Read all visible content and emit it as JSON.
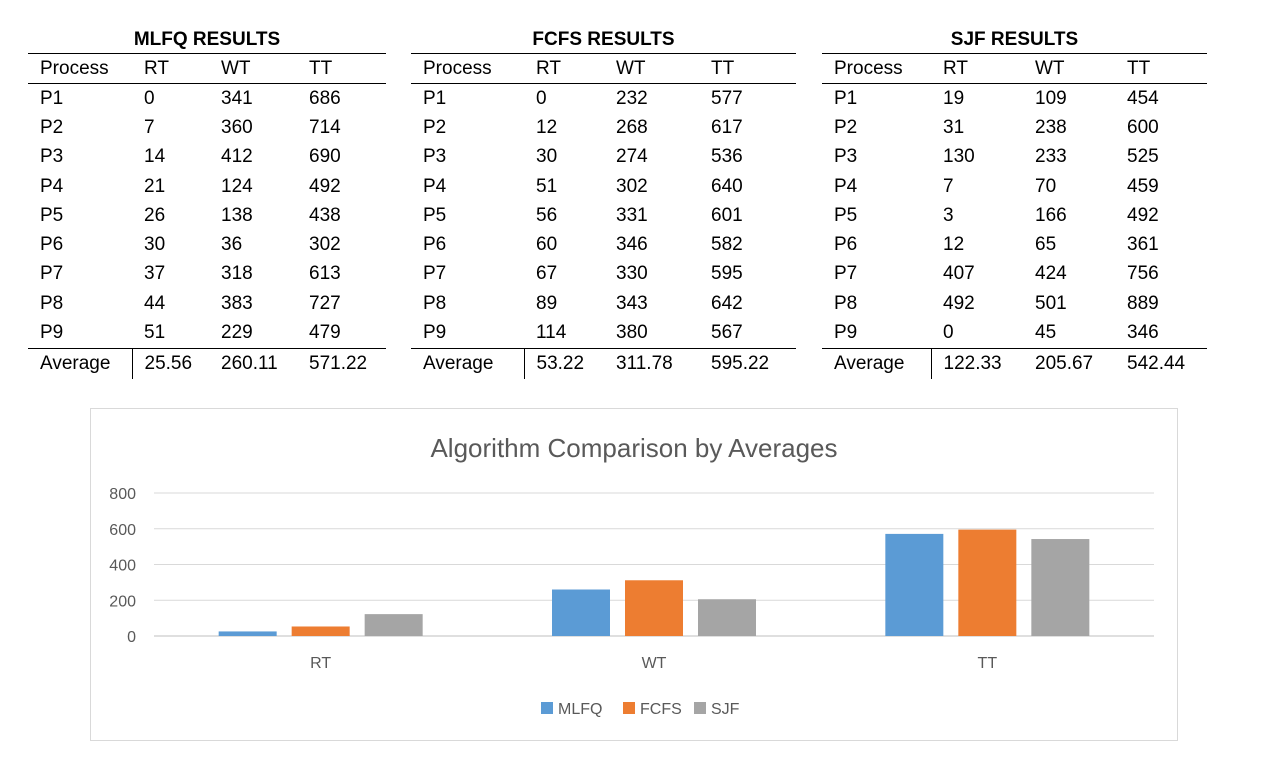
{
  "tables": [
    {
      "title": "MLFQ RESULTS",
      "headers": [
        "Process",
        "RT",
        "WT",
        "TT"
      ],
      "rows": [
        [
          "P1",
          "0",
          "341",
          "686"
        ],
        [
          "P2",
          "7",
          "360",
          "714"
        ],
        [
          "P3",
          "14",
          "412",
          "690"
        ],
        [
          "P4",
          "21",
          "124",
          "492"
        ],
        [
          "P5",
          "26",
          "138",
          "438"
        ],
        [
          "P6",
          "30",
          "36",
          "302"
        ],
        [
          "P7",
          "37",
          "318",
          "613"
        ],
        [
          "P8",
          "44",
          "383",
          "727"
        ],
        [
          "P9",
          "51",
          "229",
          "479"
        ]
      ],
      "average": [
        "Average",
        "25.56",
        "260.11",
        "571.22"
      ]
    },
    {
      "title": "FCFS RESULTS",
      "headers": [
        "Process",
        "RT",
        "WT",
        "TT"
      ],
      "rows": [
        [
          "P1",
          "0",
          "232",
          "577"
        ],
        [
          "P2",
          "12",
          "268",
          "617"
        ],
        [
          "P3",
          "30",
          "274",
          "536"
        ],
        [
          "P4",
          "51",
          "302",
          "640"
        ],
        [
          "P5",
          "56",
          "331",
          "601"
        ],
        [
          "P6",
          "60",
          "346",
          "582"
        ],
        [
          "P7",
          "67",
          "330",
          "595"
        ],
        [
          "P8",
          "89",
          "343",
          "642"
        ],
        [
          "P9",
          "114",
          "380",
          "567"
        ]
      ],
      "average": [
        "Average",
        "53.22",
        "311.78",
        "595.22"
      ]
    },
    {
      "title": "SJF RESULTS",
      "headers": [
        "Process",
        "RT",
        "WT",
        "TT"
      ],
      "rows": [
        [
          "P1",
          "19",
          "109",
          "454"
        ],
        [
          "P2",
          "31",
          "238",
          "600"
        ],
        [
          "P3",
          "130",
          "233",
          "525"
        ],
        [
          "P4",
          "7",
          "70",
          "459"
        ],
        [
          "P5",
          "3",
          "166",
          "492"
        ],
        [
          "P6",
          "12",
          "65",
          "361"
        ],
        [
          "P7",
          "407",
          "424",
          "756"
        ],
        [
          "P8",
          "492",
          "501",
          "889"
        ],
        [
          "P9",
          "0",
          "45",
          "346"
        ]
      ],
      "average": [
        "Average",
        "122.33",
        "205.67",
        "542.44"
      ]
    }
  ],
  "chart_data": {
    "type": "bar",
    "title": "Algorithm Comparison by Averages",
    "categories": [
      "RT",
      "WT",
      "TT"
    ],
    "series": [
      {
        "name": "MLFQ",
        "color": "#5b9bd5",
        "values": [
          25.56,
          260.11,
          571.22
        ]
      },
      {
        "name": "FCFS",
        "color": "#ed7d31",
        "values": [
          53.22,
          311.78,
          595.22
        ]
      },
      {
        "name": "SJF",
        "color": "#a5a5a5",
        "values": [
          122.33,
          205.67,
          542.44
        ]
      }
    ],
    "yticks": [
      "0",
      "200",
      "400",
      "600",
      "800"
    ],
    "ylim": [
      0,
      800
    ],
    "grid": true,
    "legend": "bottom"
  }
}
